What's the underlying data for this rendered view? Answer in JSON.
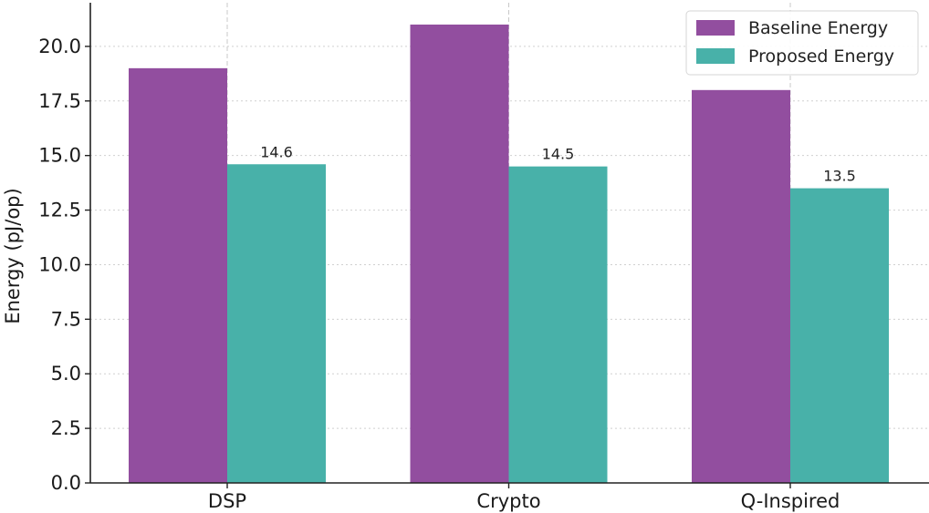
{
  "chart_data": {
    "type": "bar",
    "title": "",
    "xlabel": "",
    "ylabel": "Energy (pJ/op)",
    "categories": [
      "DSP",
      "Crypto",
      "Q-Inspired"
    ],
    "series": [
      {
        "name": "Baseline Energy",
        "values": [
          19.0,
          21.0,
          18.0
        ],
        "color": "#924e9f",
        "show_labels": false
      },
      {
        "name": "Proposed Energy",
        "values": [
          14.6,
          14.5,
          13.5
        ],
        "color": "#48b1a9",
        "show_labels": true
      }
    ],
    "data_labels": [
      "14.6",
      "14.5",
      "13.5"
    ],
    "ylim": [
      0,
      22
    ],
    "yticks": [
      0.0,
      2.5,
      5.0,
      7.5,
      10.0,
      12.5,
      15.0,
      17.5,
      20.0
    ],
    "ytick_labels": [
      "0.0",
      "2.5",
      "5.0",
      "7.5",
      "10.0",
      "12.5",
      "15.0",
      "17.5",
      "20.0"
    ],
    "grid": true,
    "legend_position": "top-right"
  }
}
